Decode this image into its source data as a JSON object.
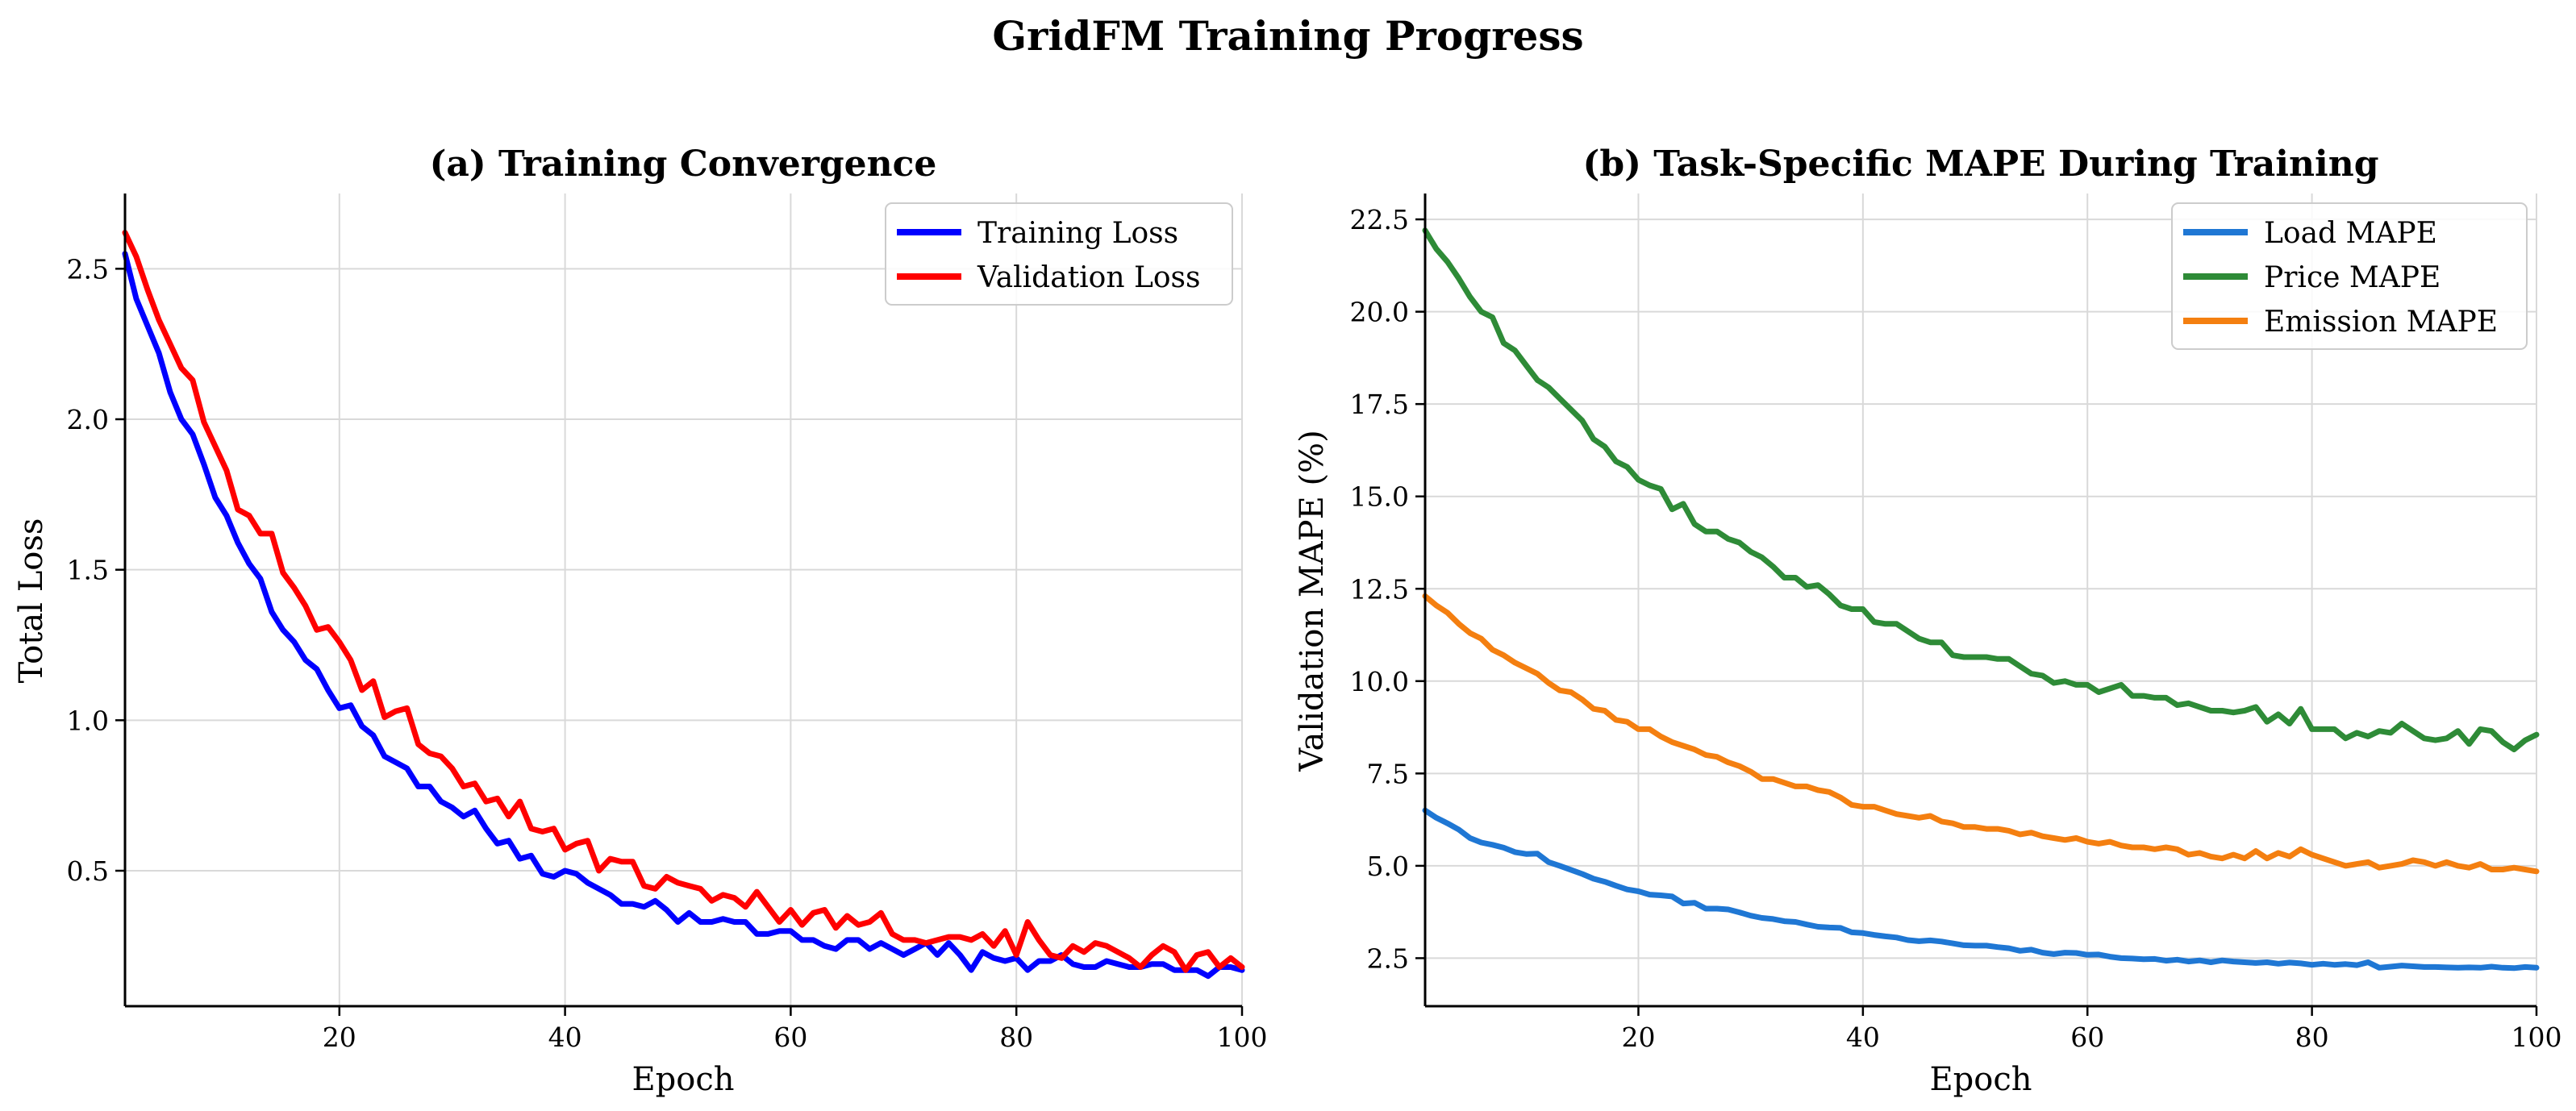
{
  "figure_title": "GridFM Training Progress",
  "chart_data": [
    {
      "type": "line",
      "title": "(a) Training Convergence",
      "xlabel": "Epoch",
      "ylabel": "Total Loss",
      "xlim": [
        1,
        100
      ],
      "ylim": [
        0.05,
        2.75
      ],
      "xticks": [
        20,
        40,
        60,
        80,
        100
      ],
      "yticks": [
        0.5,
        1.0,
        1.5,
        2.0,
        2.5
      ],
      "ytick_decimals": 1,
      "grid": true,
      "legend_position": "top-right",
      "x": [
        1,
        2,
        3,
        4,
        5,
        6,
        7,
        8,
        9,
        10,
        11,
        12,
        13,
        14,
        15,
        16,
        17,
        18,
        19,
        20,
        21,
        22,
        23,
        24,
        25,
        26,
        27,
        28,
        29,
        30,
        31,
        32,
        33,
        34,
        35,
        36,
        37,
        38,
        39,
        40,
        41,
        42,
        43,
        44,
        45,
        46,
        47,
        48,
        49,
        50,
        51,
        52,
        53,
        54,
        55,
        56,
        57,
        58,
        59,
        60,
        61,
        62,
        63,
        64,
        65,
        66,
        67,
        68,
        69,
        70,
        71,
        72,
        73,
        74,
        75,
        76,
        77,
        78,
        79,
        80,
        81,
        82,
        83,
        84,
        85,
        86,
        87,
        88,
        89,
        90,
        91,
        92,
        93,
        94,
        95,
        96,
        97,
        98,
        99,
        100
      ],
      "series": [
        {
          "name": "Training Loss",
          "color": "#0000ff",
          "values": [
            2.55,
            2.4,
            2.31,
            2.22,
            2.09,
            2.0,
            1.95,
            1.85,
            1.74,
            1.68,
            1.59,
            1.52,
            1.47,
            1.36,
            1.3,
            1.26,
            1.2,
            1.17,
            1.1,
            1.04,
            1.05,
            0.98,
            0.95,
            0.88,
            0.86,
            0.84,
            0.78,
            0.78,
            0.73,
            0.71,
            0.68,
            0.7,
            0.64,
            0.59,
            0.6,
            0.54,
            0.55,
            0.49,
            0.48,
            0.5,
            0.49,
            0.46,
            0.44,
            0.42,
            0.39,
            0.39,
            0.38,
            0.4,
            0.37,
            0.33,
            0.36,
            0.33,
            0.33,
            0.34,
            0.33,
            0.33,
            0.29,
            0.29,
            0.3,
            0.3,
            0.27,
            0.27,
            0.25,
            0.24,
            0.27,
            0.27,
            0.24,
            0.26,
            0.24,
            0.22,
            0.24,
            0.26,
            0.22,
            0.26,
            0.22,
            0.17,
            0.23,
            0.21,
            0.2,
            0.21,
            0.17,
            0.2,
            0.2,
            0.22,
            0.19,
            0.18,
            0.18,
            0.2,
            0.19,
            0.18,
            0.18,
            0.19,
            0.19,
            0.17,
            0.17,
            0.17,
            0.15,
            0.18,
            0.18,
            0.17
          ]
        },
        {
          "name": "Validation Loss",
          "color": "#ff0000",
          "values": [
            2.62,
            2.54,
            2.43,
            2.33,
            2.25,
            2.17,
            2.13,
            1.99,
            1.91,
            1.83,
            1.7,
            1.68,
            1.62,
            1.62,
            1.49,
            1.44,
            1.38,
            1.3,
            1.31,
            1.26,
            1.2,
            1.1,
            1.13,
            1.01,
            1.03,
            1.04,
            0.92,
            0.89,
            0.88,
            0.84,
            0.78,
            0.79,
            0.73,
            0.74,
            0.68,
            0.73,
            0.64,
            0.63,
            0.64,
            0.57,
            0.59,
            0.6,
            0.5,
            0.54,
            0.53,
            0.53,
            0.45,
            0.44,
            0.48,
            0.46,
            0.45,
            0.44,
            0.4,
            0.42,
            0.41,
            0.38,
            0.43,
            0.38,
            0.33,
            0.37,
            0.32,
            0.36,
            0.37,
            0.31,
            0.35,
            0.32,
            0.33,
            0.36,
            0.29,
            0.27,
            0.27,
            0.26,
            0.27,
            0.28,
            0.28,
            0.27,
            0.29,
            0.25,
            0.3,
            0.22,
            0.33,
            0.27,
            0.22,
            0.21,
            0.25,
            0.23,
            0.26,
            0.25,
            0.23,
            0.21,
            0.18,
            0.22,
            0.25,
            0.23,
            0.17,
            0.22,
            0.23,
            0.18,
            0.21,
            0.18
          ]
        }
      ]
    },
    {
      "type": "line",
      "title": "(b) Task-Specific MAPE During Training",
      "xlabel": "Epoch",
      "ylabel": "Validation MAPE (%)",
      "xlim": [
        1,
        100
      ],
      "ylim": [
        1.2,
        23.2
      ],
      "xticks": [
        20,
        40,
        60,
        80,
        100
      ],
      "yticks": [
        2.5,
        5.0,
        7.5,
        10.0,
        12.5,
        15.0,
        17.5,
        20.0,
        22.5
      ],
      "ytick_decimals": 1,
      "grid": true,
      "legend_position": "top-right",
      "x": [
        1,
        2,
        3,
        4,
        5,
        6,
        7,
        8,
        9,
        10,
        11,
        12,
        13,
        14,
        15,
        16,
        17,
        18,
        19,
        20,
        21,
        22,
        23,
        24,
        25,
        26,
        27,
        28,
        29,
        30,
        31,
        32,
        33,
        34,
        35,
        36,
        37,
        38,
        39,
        40,
        41,
        42,
        43,
        44,
        45,
        46,
        47,
        48,
        49,
        50,
        51,
        52,
        53,
        54,
        55,
        56,
        57,
        58,
        59,
        60,
        61,
        62,
        63,
        64,
        65,
        66,
        67,
        68,
        69,
        70,
        71,
        72,
        73,
        74,
        75,
        76,
        77,
        78,
        79,
        80,
        81,
        82,
        83,
        84,
        85,
        86,
        87,
        88,
        89,
        90,
        91,
        92,
        93,
        94,
        95,
        96,
        97,
        98,
        99,
        100
      ],
      "series": [
        {
          "name": "Load MAPE",
          "color": "#1f77d4",
          "values": [
            6.5,
            6.3,
            6.15,
            5.98,
            5.75,
            5.63,
            5.57,
            5.49,
            5.37,
            5.32,
            5.33,
            5.1,
            5.0,
            4.89,
            4.78,
            4.65,
            4.57,
            4.46,
            4.36,
            4.31,
            4.22,
            4.2,
            4.17,
            3.98,
            4.0,
            3.84,
            3.84,
            3.82,
            3.74,
            3.65,
            3.59,
            3.56,
            3.5,
            3.48,
            3.41,
            3.35,
            3.33,
            3.32,
            3.2,
            3.18,
            3.13,
            3.09,
            3.06,
            2.99,
            2.96,
            2.98,
            2.95,
            2.9,
            2.85,
            2.84,
            2.84,
            2.8,
            2.77,
            2.7,
            2.73,
            2.65,
            2.61,
            2.65,
            2.64,
            2.59,
            2.6,
            2.54,
            2.5,
            2.49,
            2.47,
            2.48,
            2.43,
            2.46,
            2.41,
            2.44,
            2.39,
            2.44,
            2.41,
            2.39,
            2.37,
            2.39,
            2.35,
            2.38,
            2.36,
            2.32,
            2.35,
            2.32,
            2.34,
            2.31,
            2.39,
            2.24,
            2.27,
            2.3,
            2.28,
            2.26,
            2.26,
            2.25,
            2.24,
            2.25,
            2.24,
            2.27,
            2.24,
            2.23,
            2.26,
            2.24
          ]
        },
        {
          "name": "Price MAPE",
          "color": "#2e8b37",
          "values": [
            22.2,
            21.7,
            21.35,
            20.9,
            20.4,
            20.0,
            19.85,
            19.15,
            18.95,
            18.55,
            18.15,
            17.95,
            17.65,
            17.35,
            17.05,
            16.55,
            16.35,
            15.95,
            15.8,
            15.45,
            15.3,
            15.2,
            14.65,
            14.8,
            14.25,
            14.05,
            14.05,
            13.85,
            13.75,
            13.5,
            13.35,
            13.1,
            12.8,
            12.8,
            12.55,
            12.6,
            12.35,
            12.05,
            11.95,
            11.95,
            11.6,
            11.55,
            11.55,
            11.35,
            11.15,
            11.05,
            11.05,
            10.7,
            10.65,
            10.65,
            10.65,
            10.6,
            10.6,
            10.4,
            10.2,
            10.15,
            9.95,
            10.0,
            9.9,
            9.9,
            9.7,
            9.8,
            9.9,
            9.6,
            9.6,
            9.55,
            9.55,
            9.35,
            9.4,
            9.3,
            9.2,
            9.2,
            9.15,
            9.2,
            9.3,
            8.9,
            9.1,
            8.85,
            9.25,
            8.7,
            8.7,
            8.7,
            8.45,
            8.6,
            8.5,
            8.65,
            8.6,
            8.85,
            8.65,
            8.45,
            8.4,
            8.45,
            8.65,
            8.3,
            8.7,
            8.65,
            8.35,
            8.15,
            8.4,
            8.55
          ]
        },
        {
          "name": "Emission MAPE",
          "color": "#f47f10",
          "values": [
            12.3,
            12.05,
            11.85,
            11.55,
            11.3,
            11.15,
            10.85,
            10.7,
            10.5,
            10.35,
            10.2,
            9.95,
            9.75,
            9.7,
            9.5,
            9.25,
            9.2,
            8.95,
            8.9,
            8.7,
            8.7,
            8.5,
            8.35,
            8.25,
            8.15,
            8.0,
            7.95,
            7.8,
            7.7,
            7.55,
            7.35,
            7.35,
            7.25,
            7.15,
            7.15,
            7.05,
            7.0,
            6.85,
            6.65,
            6.6,
            6.6,
            6.5,
            6.4,
            6.35,
            6.3,
            6.35,
            6.2,
            6.15,
            6.05,
            6.05,
            6.0,
            6.0,
            5.95,
            5.85,
            5.9,
            5.8,
            5.75,
            5.7,
            5.75,
            5.65,
            5.6,
            5.65,
            5.55,
            5.5,
            5.5,
            5.45,
            5.5,
            5.45,
            5.3,
            5.35,
            5.25,
            5.2,
            5.3,
            5.2,
            5.4,
            5.2,
            5.35,
            5.25,
            5.45,
            5.3,
            5.2,
            5.1,
            5.0,
            5.05,
            5.1,
            4.95,
            5.0,
            5.05,
            5.15,
            5.1,
            5.0,
            5.1,
            5.0,
            4.95,
            5.05,
            4.9,
            4.9,
            4.95,
            4.9,
            4.85
          ]
        }
      ]
    }
  ]
}
